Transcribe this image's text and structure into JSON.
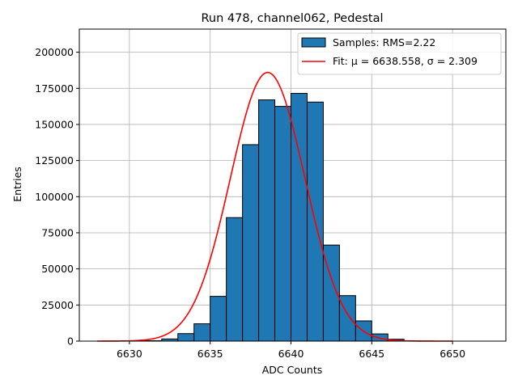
{
  "chart_data": {
    "type": "bar",
    "title": "Run 478, channel062, Pedestal",
    "xlabel": "ADC Counts",
    "ylabel": "Entries",
    "xlim": [
      6626.9,
      6653.3
    ],
    "ylim": [
      0,
      216000
    ],
    "xticks": [
      6630,
      6635,
      6640,
      6645,
      6650
    ],
    "yticks": [
      0,
      25000,
      50000,
      75000,
      100000,
      125000,
      150000,
      175000,
      200000
    ],
    "grid": true,
    "legend_position": "top-right",
    "bar_color": "#1f77b4",
    "fit_color": "#ff0000",
    "histogram": {
      "name": "Samples: RMS=2.22",
      "bin_edges": [
        6628,
        6629,
        6630,
        6631,
        6632,
        6633,
        6634,
        6635,
        6636,
        6637,
        6638,
        6639,
        6640,
        6641,
        6642,
        6643,
        6644,
        6645,
        6646,
        6647,
        6648,
        6649,
        6650,
        6651,
        6652
      ],
      "counts": [
        0,
        0,
        100,
        300,
        1500,
        5200,
        12000,
        31000,
        85500,
        136000,
        167000,
        162500,
        171500,
        165500,
        66500,
        31500,
        14000,
        5000,
        1300,
        100,
        0,
        0,
        0,
        0
      ]
    },
    "fit": {
      "name": "Fit: μ = 6638.558, σ = 2.309",
      "mu": 6638.558,
      "sigma": 2.309,
      "amplitude": 186000,
      "x_range": [
        6628,
        6650
      ]
    }
  }
}
